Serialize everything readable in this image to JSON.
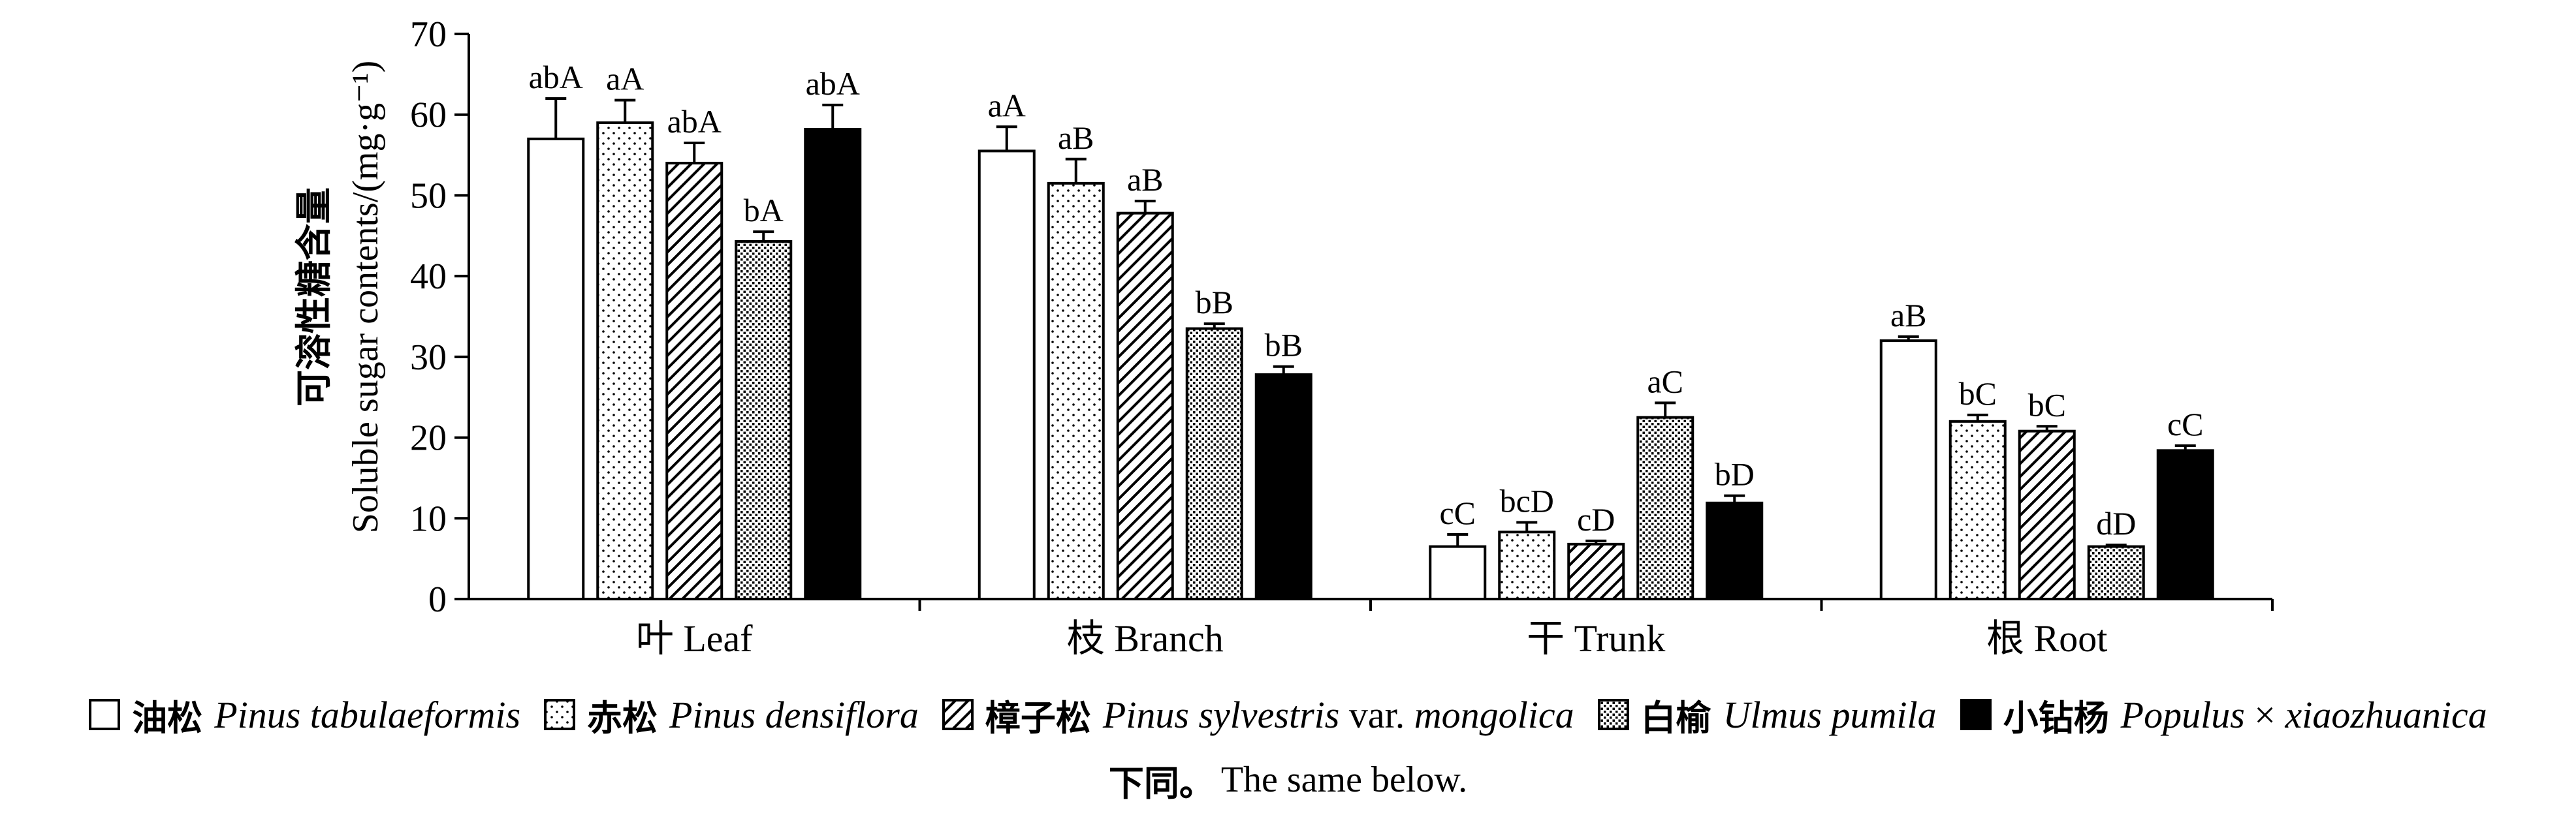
{
  "chart_data": {
    "type": "bar",
    "title": "",
    "ylabel_zh": "可溶性糖含量",
    "ylabel": "Soluble sugar contents/(mg·g⁻¹)",
    "xlabel": "",
    "ylim": [
      0,
      70
    ],
    "yticks": [
      "0",
      "10",
      "20",
      "30",
      "40",
      "50",
      "60",
      "70"
    ],
    "categories": [
      "叶  Leaf",
      "枝  Branch",
      "干  Trunk",
      "根  Root"
    ],
    "error_bars": true,
    "series": [
      {
        "name": "油松 Pinus tabulaeformis",
        "fill": "white",
        "values": [
          57.0,
          55.5,
          6.5,
          32.0
        ],
        "errors": [
          5.0,
          3.0,
          1.5,
          0.5
        ],
        "labels": [
          "abA",
          "aA",
          "cC",
          "aB"
        ]
      },
      {
        "name": "赤松 Pinus densiflora",
        "fill": "dots",
        "values": [
          59.0,
          51.5,
          8.3,
          22.0
        ],
        "errors": [
          2.8,
          3.0,
          1.2,
          0.8
        ],
        "labels": [
          "aA",
          "aB",
          "bcD",
          "bC"
        ]
      },
      {
        "name": "樟子松 Pinus sylvestris var. mongolica",
        "fill": "diagonal",
        "values": [
          54.0,
          47.8,
          6.8,
          20.8
        ],
        "errors": [
          2.5,
          1.5,
          0.4,
          0.6
        ],
        "labels": [
          "abA",
          "aB",
          "cD",
          "bC"
        ]
      },
      {
        "name": "白榆 Ulmus pumila",
        "fill": "dense-dots",
        "values": [
          44.3,
          33.5,
          22.5,
          6.5
        ],
        "errors": [
          1.2,
          0.6,
          1.8,
          0.2
        ],
        "labels": [
          "bA",
          "bB",
          "aC",
          "dD"
        ]
      },
      {
        "name": "小钻杨 Populus × xiaozhuanica",
        "fill": "black",
        "values": [
          58.2,
          27.8,
          11.9,
          18.4
        ],
        "errors": [
          3.0,
          1.0,
          0.9,
          0.6
        ],
        "labels": [
          "abA",
          "bB",
          "bD",
          "cC"
        ]
      }
    ]
  },
  "legend": [
    {
      "zh": "油松",
      "latin": "Pinus tabulaeformis",
      "suffix": "",
      "suffix_italic": ""
    },
    {
      "zh": "赤松",
      "latin": "Pinus densiflora",
      "suffix": "",
      "suffix_italic": ""
    },
    {
      "zh": "樟子松",
      "latin": "Pinus sylvestris",
      "suffix": " var. ",
      "suffix_italic": "mongolica"
    },
    {
      "zh": "白榆",
      "latin": "Ulmus pumila",
      "suffix": "",
      "suffix_italic": ""
    },
    {
      "zh": "小钻杨",
      "latin": "Populus",
      "suffix": " × ",
      "suffix_italic": "xiaozhuanica"
    }
  ],
  "note": {
    "zh": "下同。",
    "en": "The same below."
  }
}
